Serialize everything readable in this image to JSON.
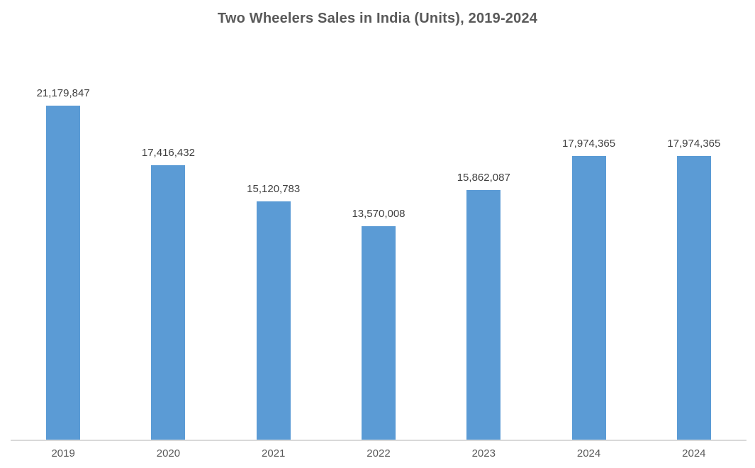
{
  "chart_data": {
    "type": "bar",
    "title": "Two Wheelers Sales in India (Units), 2019-2024",
    "categories": [
      "2019",
      "2020",
      "2021",
      "2022",
      "2023",
      "2024",
      "2024"
    ],
    "values": [
      21179847,
      17416432,
      15120783,
      13570008,
      15862087,
      17974365,
      17974365
    ],
    "data_labels": [
      "21,179,847",
      "17,416,432",
      "15,120,783",
      "13,570,008",
      "15,862,087",
      "17,974,365",
      "17,974,365"
    ],
    "xlabel": "",
    "ylabel": "",
    "ylim": [
      0,
      21179847
    ],
    "grid": false,
    "legend": "none",
    "y_axis_visible": false,
    "bar_color": "#5b9bd5",
    "axis_line_color": "#d9d9d9",
    "data_label_color": "#404040",
    "tick_label_color": "#595959",
    "title_color": "#595959"
  }
}
